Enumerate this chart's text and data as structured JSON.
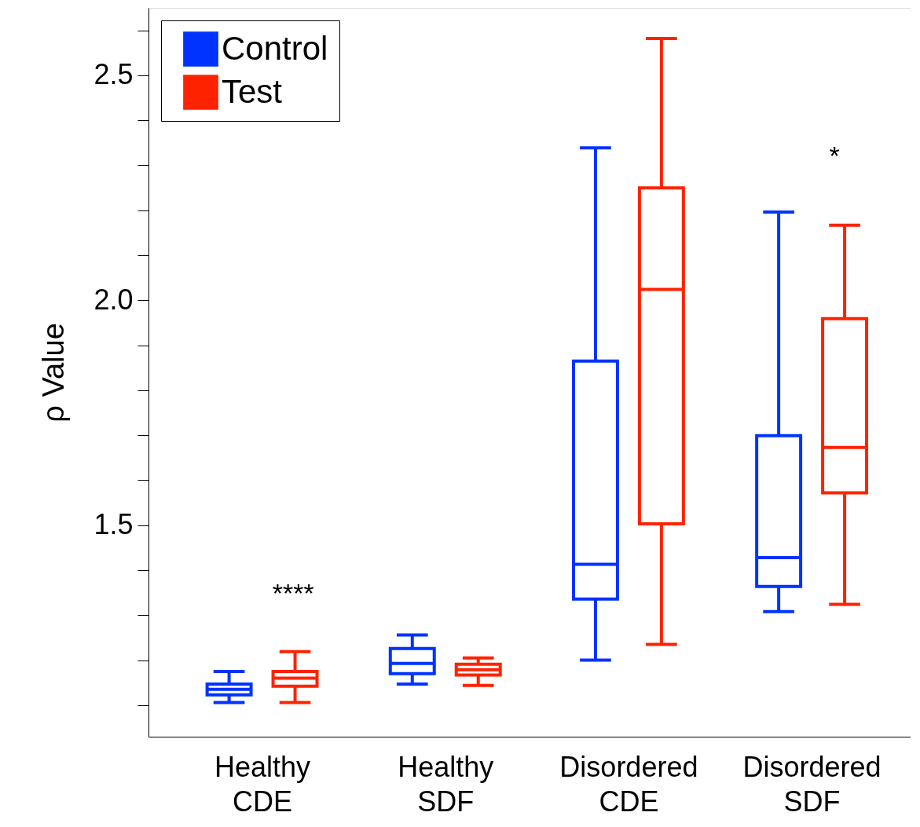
{
  "chart_data": {
    "type": "box",
    "ylabel": "ρ Value",
    "categories": [
      "Healthy CDE",
      "Healthy SDF",
      "Disordered CDE",
      "Disordered SDF"
    ],
    "series": [
      {
        "name": "Control",
        "color": "#0033ff",
        "boxes": [
          {
            "low": 1.106,
            "q1": 1.123,
            "median": 1.135,
            "q3": 1.147,
            "high": 1.175
          },
          {
            "low": 1.147,
            "q1": 1.17,
            "median": 1.193,
            "q3": 1.226,
            "high": 1.256
          },
          {
            "low": 1.2,
            "q1": 1.336,
            "median": 1.413,
            "q3": 1.865,
            "high": 2.339
          },
          {
            "low": 1.308,
            "q1": 1.364,
            "median": 1.428,
            "q3": 1.699,
            "high": 2.196
          }
        ]
      },
      {
        "name": "Test",
        "color": "#ff2200",
        "boxes": [
          {
            "low": 1.106,
            "q1": 1.142,
            "median": 1.16,
            "q3": 1.175,
            "high": 1.219
          },
          {
            "low": 1.144,
            "q1": 1.167,
            "median": 1.179,
            "q3": 1.191,
            "high": 1.205
          },
          {
            "low": 1.235,
            "q1": 1.503,
            "median": 2.024,
            "q3": 2.25,
            "high": 2.582
          },
          {
            "low": 1.324,
            "q1": 1.572,
            "median": 1.673,
            "q3": 1.959,
            "high": 2.167
          }
        ]
      }
    ],
    "ylim": [
      1.03,
      2.65
    ],
    "yticks": [
      {
        "value": 1.1,
        "label": null
      },
      {
        "value": 1.2,
        "label": null
      },
      {
        "value": 1.3,
        "label": null
      },
      {
        "value": 1.4,
        "label": null
      },
      1.5,
      {
        "value": 1.6,
        "label": null
      },
      {
        "value": 1.7,
        "label": null
      },
      {
        "value": 1.8,
        "label": null
      },
      {
        "value": 1.9,
        "label": null
      },
      {
        "value": 2.0,
        "label": "2.0"
      },
      {
        "value": 2.1,
        "label": null
      },
      {
        "value": 2.2,
        "label": null
      },
      {
        "value": 2.3,
        "label": null
      },
      {
        "value": 2.4,
        "label": null
      },
      2.5,
      {
        "value": 2.6,
        "label": null
      }
    ],
    "annotations": [
      "****",
      "*"
    ],
    "grid": false,
    "legend": "top left"
  }
}
